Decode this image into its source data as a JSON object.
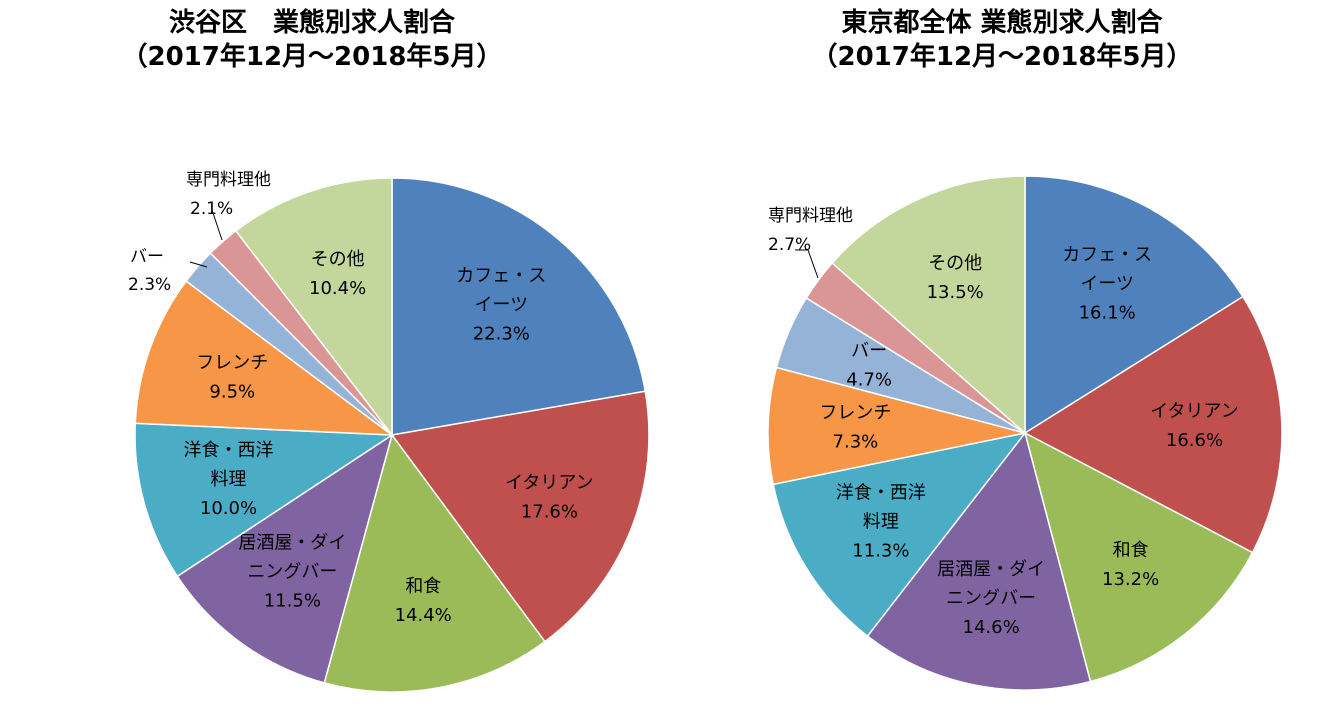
{
  "chart_data": [
    {
      "type": "pie",
      "title": "渋谷区　業態別求人割合",
      "subtitle": "（2017年12月～2018年5月）",
      "slices": [
        {
          "name": "カフェ・スイーツ",
          "label_lines": [
            "カフェ・ス",
            "イーツ"
          ],
          "value": 22.3,
          "value_label": "22.3%",
          "color": "#4f81bd"
        },
        {
          "name": "イタリアン",
          "label_lines": [
            "イタリアン"
          ],
          "value": 17.6,
          "value_label": "17.6%",
          "color": "#c0504d"
        },
        {
          "name": "和食",
          "label_lines": [
            "和食"
          ],
          "value": 14.4,
          "value_label": "14.4%",
          "color": "#9bbb59"
        },
        {
          "name": "居酒屋・ダイニングバー",
          "label_lines": [
            "居酒屋・ダイ",
            "ニングバー"
          ],
          "value": 11.5,
          "value_label": "11.5%",
          "color": "#8064a2"
        },
        {
          "name": "洋食・西洋料理",
          "label_lines": [
            "洋食・西洋",
            "料理"
          ],
          "value": 10.0,
          "value_label": "10.0%",
          "color": "#4bacc6"
        },
        {
          "name": "フレンチ",
          "label_lines": [
            "フレンチ"
          ],
          "value": 9.5,
          "value_label": "9.5%",
          "color": "#f79646"
        },
        {
          "name": "バー",
          "label_lines": [
            "バー"
          ],
          "value": 2.3,
          "value_label": "2.3%",
          "color": "#95b3d7",
          "outside": true
        },
        {
          "name": "専門料理他",
          "label_lines": [
            "専門料理他"
          ],
          "value": 2.1,
          "value_label": "2.1%",
          "color": "#da9694",
          "outside": true
        },
        {
          "name": "その他",
          "label_lines": [
            "その他"
          ],
          "value": 10.4,
          "value_label": "10.4%",
          "color": "#c3d69b"
        }
      ]
    },
    {
      "type": "pie",
      "title": "東京都全体 業態別求人割合",
      "subtitle": "（2017年12月～2018年5月）",
      "slices": [
        {
          "name": "カフェ・スイーツ",
          "label_lines": [
            "カフェ・ス",
            "イーツ"
          ],
          "value": 16.1,
          "value_label": "16.1%",
          "color": "#4f81bd"
        },
        {
          "name": "イタリアン",
          "label_lines": [
            "イタリアン"
          ],
          "value": 16.6,
          "value_label": "16.6%",
          "color": "#c0504d"
        },
        {
          "name": "和食",
          "label_lines": [
            "和食"
          ],
          "value": 13.2,
          "value_label": "13.2%",
          "color": "#9bbb59"
        },
        {
          "name": "居酒屋・ダイニングバー",
          "label_lines": [
            "居酒屋・ダイ",
            "ニングバー"
          ],
          "value": 14.6,
          "value_label": "14.6%",
          "color": "#8064a2"
        },
        {
          "name": "洋食・西洋料理",
          "label_lines": [
            "洋食・西洋",
            "料理"
          ],
          "value": 11.3,
          "value_label": "11.3%",
          "color": "#4bacc6"
        },
        {
          "name": "フレンチ",
          "label_lines": [
            "フレンチ"
          ],
          "value": 7.3,
          "value_label": "7.3%",
          "color": "#f79646"
        },
        {
          "name": "バー",
          "label_lines": [
            "バー"
          ],
          "value": 4.7,
          "value_label": "4.7%",
          "color": "#95b3d7"
        },
        {
          "name": "専門料理他",
          "label_lines": [
            "専門料理他"
          ],
          "value": 2.7,
          "value_label": "2.7%",
          "color": "#da9694",
          "outside": true
        },
        {
          "name": "その他",
          "label_lines": [
            "その他"
          ],
          "value": 13.5,
          "value_label": "13.5%",
          "color": "#c3d69b"
        }
      ]
    }
  ]
}
